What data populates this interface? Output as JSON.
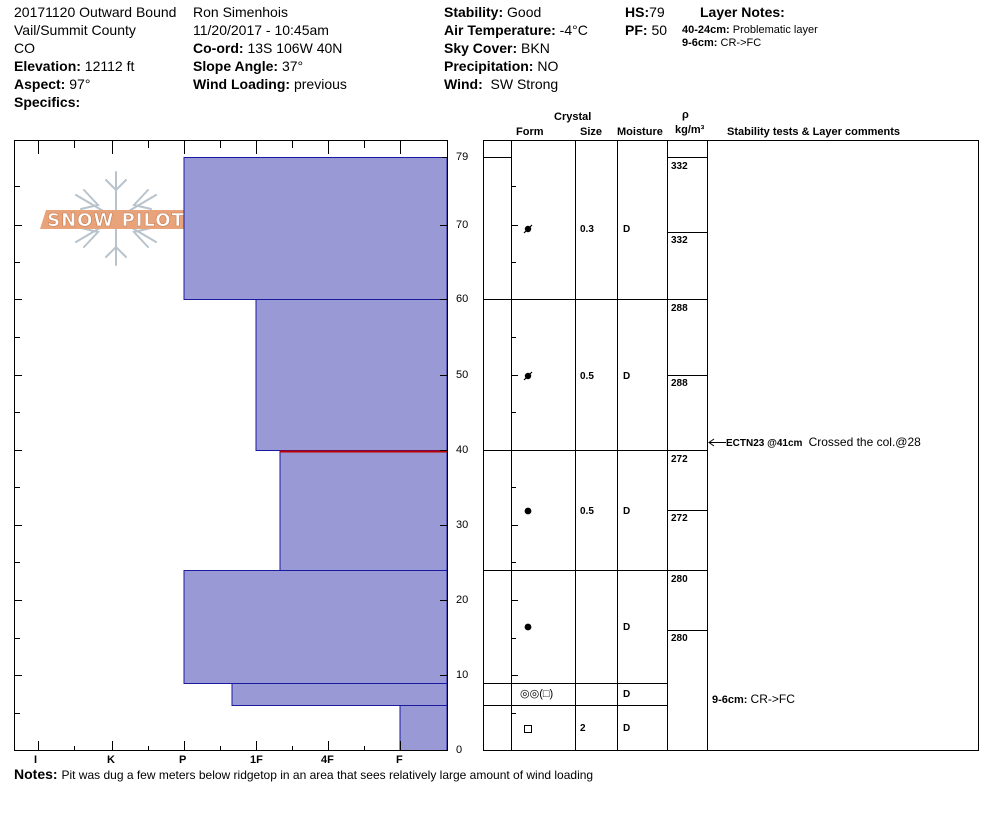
{
  "header": {
    "title": "20171120 Outward Bound",
    "location1": "Vail/Summit County",
    "location2": "CO",
    "elevation_label": "Elevation:",
    "elevation": "12112 ft",
    "aspect_label": "Aspect:",
    "aspect": "97°",
    "specifics_label": "Specifics:",
    "observer": "Ron Simenhois",
    "datetime": "11/20/2017 - 10:45am",
    "coord_label": "Co-ord:",
    "coord": "13S 106W 40N",
    "slope_label": "Slope Angle:",
    "slope": "37°",
    "wind_loading_label": "Wind Loading:",
    "wind_loading": "previous",
    "stability_label": "Stability:",
    "stability": "Good",
    "air_temp_label": "Air Temperature:",
    "air_temp": "-4°C",
    "sky_label": "Sky Cover:",
    "sky": "BKN",
    "precip_label": "Precipitation:",
    "precip": "NO",
    "wind_label": "Wind:",
    "wind": "SW Strong",
    "hs_label": "HS:",
    "hs": "79",
    "pf_label": "PF:",
    "pf": "50",
    "layer_notes_label": "Layer Notes:",
    "layer_note1_depth": "40-24cm:",
    "layer_note1_text": "Problematic layer",
    "layer_note2_depth": "9-6cm:",
    "layer_note2_text": "CR->FC"
  },
  "table_headers": {
    "crystal": "Crystal",
    "form": "Form",
    "size": "Size",
    "moisture": "Moisture",
    "rho": "ρ",
    "density_unit": "kg/m³",
    "stability_comments": "Stability tests & Layer comments"
  },
  "hardness_axis": [
    "I",
    "K",
    "P",
    "1F",
    "4F",
    "F"
  ],
  "depth_axis": [
    "79",
    "70",
    "60",
    "50",
    "40",
    "30",
    "20",
    "10",
    "0"
  ],
  "layers": [
    {
      "top": 79,
      "bottom": 60,
      "hardness": "P",
      "form": "rounding-faceted",
      "size": "0.3",
      "moisture": "D",
      "densities": [
        "332",
        "332"
      ]
    },
    {
      "top": 60,
      "bottom": 40,
      "hardness": "1F-",
      "form": "rounding-faceted",
      "size": "0.5",
      "moisture": "D",
      "densities": [
        "288",
        "288"
      ]
    },
    {
      "top": 40,
      "bottom": 24,
      "hardness": "1F",
      "form": "rounded",
      "size": "0.5",
      "moisture": "D",
      "densities": [
        "272",
        "272"
      ]
    },
    {
      "top": 24,
      "bottom": 9,
      "hardness": "P",
      "form": "rounded",
      "size": "",
      "moisture": "D",
      "densities": [
        "280",
        "280"
      ]
    },
    {
      "top": 9,
      "bottom": 6,
      "hardness": "P-1F",
      "form": "◎◎(□)",
      "size": "",
      "moisture": "D",
      "densities": []
    },
    {
      "top": 6,
      "bottom": 0,
      "hardness": "F",
      "form": "□",
      "size": "2",
      "moisture": "D",
      "densities": []
    }
  ],
  "stability_test": {
    "depth": 40,
    "label": "ECTN23 @41cm",
    "comment": "Crossed the col.@28"
  },
  "layer_comment": {
    "depth_label": "9-6cm:",
    "text": "CR->FC"
  },
  "notes_label": "Notes:",
  "notes": "Pit was dug a few meters below ridgetop in an area that sees relatively large amount of wind loading",
  "logo_text": "SNOW PILOT",
  "colors": {
    "layer_fill": "#9999d6",
    "layer_stroke": "#1a1aa0",
    "weak_layer": "#c00000",
    "logo_orange": "#e9a37a"
  }
}
